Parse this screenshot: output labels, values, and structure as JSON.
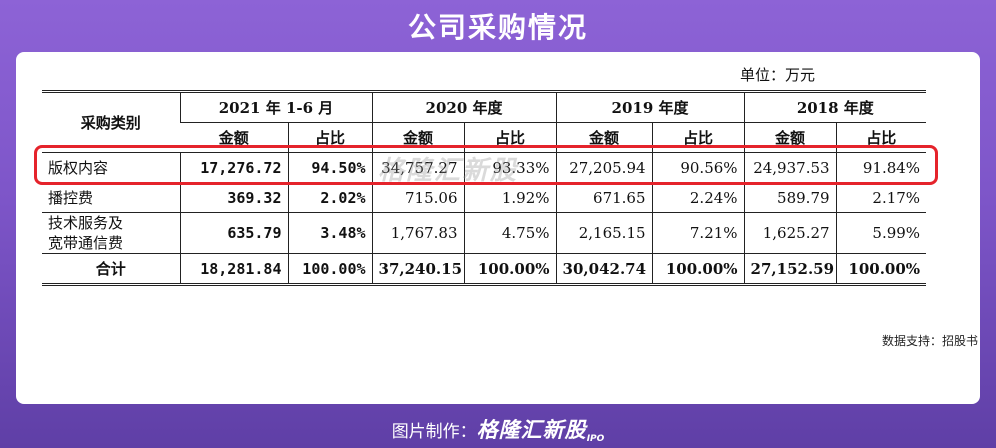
{
  "header": {
    "title": "公司采购情况"
  },
  "unit_label": "单位：万元",
  "table": {
    "category_header": "采购类别",
    "periods": [
      "2021 年 1-6 月",
      "2020 年度",
      "2019 年度",
      "2018 年度"
    ],
    "amount_label": "金额",
    "ratio_label": "占比",
    "rows": [
      {
        "category": "版权内容",
        "values": [
          "17,276.72",
          "94.50%",
          "34,757.27",
          "93.33%",
          "27,205.94",
          "90.56%",
          "24,937.53",
          "91.84%"
        ]
      },
      {
        "category": "播控费",
        "values": [
          "369.32",
          "2.02%",
          "715.06",
          "1.92%",
          "671.65",
          "2.24%",
          "589.79",
          "2.17%"
        ]
      },
      {
        "category_line1": "技术服务及",
        "category_line2": "宽带通信费",
        "values": [
          "635.79",
          "3.48%",
          "1,767.83",
          "4.75%",
          "2,165.15",
          "7.21%",
          "1,625.27",
          "5.99%"
        ]
      },
      {
        "category": "合计",
        "values": [
          "18,281.84",
          "100.00%",
          "37,240.15",
          "100.00%",
          "30,042.74",
          "100.00%",
          "27,152.59",
          "100.00%"
        ]
      }
    ]
  },
  "watermark": "格隆汇新股",
  "source": "数据支持：招股书",
  "footer": {
    "prefix": "图片制作：",
    "brand": "格隆汇新股",
    "suffix": "IPO"
  },
  "colors": {
    "highlight": "#e5232b",
    "background": "#7d55c8"
  }
}
